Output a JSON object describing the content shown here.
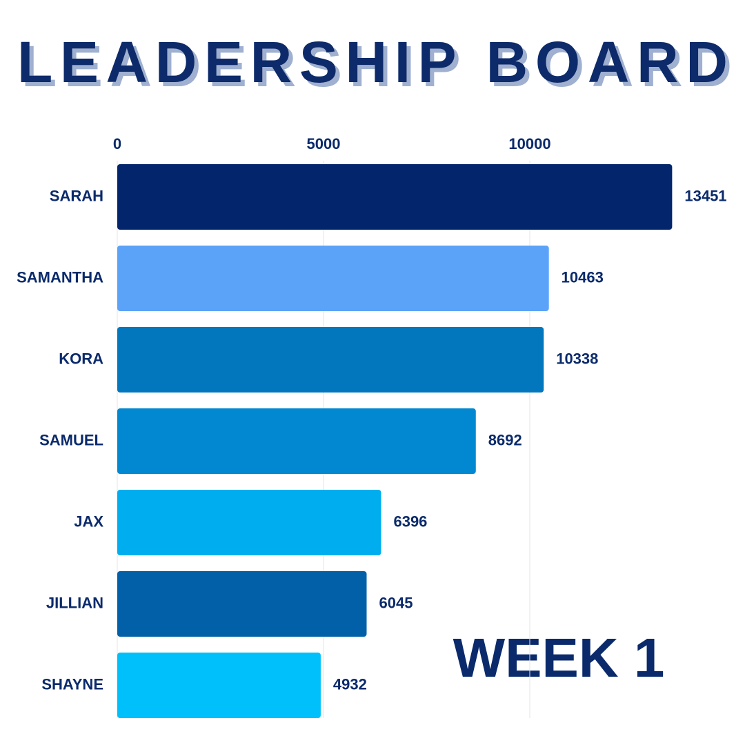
{
  "chart_data": {
    "type": "bar",
    "orientation": "horizontal",
    "title": "LEADERSHIP BOARD",
    "annotation": "WEEK 1",
    "categories": [
      "SARAH",
      "SAMANTHA",
      "KORA",
      "SAMUEL",
      "JAX",
      "JILLIAN",
      "SHAYNE"
    ],
    "values": [
      13451,
      10463,
      10338,
      8692,
      6396,
      6045,
      4932
    ],
    "colors": [
      "#03256c",
      "#5ba3f8",
      "#0277bd",
      "#0288d1",
      "#00aeef",
      "#0260a8",
      "#00c0fb"
    ],
    "xlim": [
      0,
      15000
    ],
    "xticks": [
      0,
      5000,
      10000
    ],
    "grid": true
  }
}
